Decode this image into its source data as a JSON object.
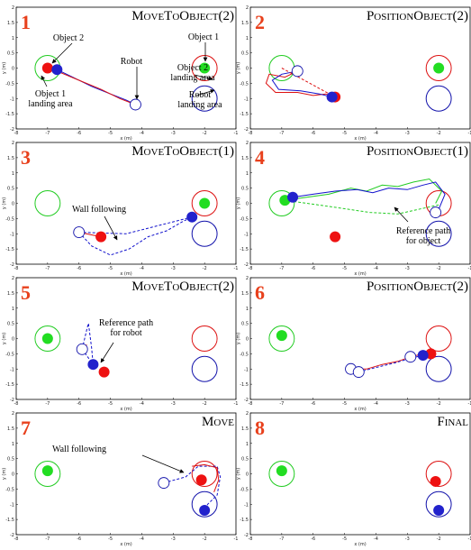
{
  "chart_data": [
    {
      "type": "line",
      "panel": "1",
      "title": "MoveToObject(2)",
      "xlabel": "x (m)",
      "ylabel": "y (m)",
      "xlim": [
        -8,
        -1
      ],
      "ylim": [
        -2,
        2
      ],
      "xticks": [
        -8,
        -7,
        -6,
        -5,
        -4,
        -3,
        -2,
        -1
      ],
      "yticks": [
        -2,
        -1.5,
        -1,
        -0.5,
        0,
        0.5,
        1,
        1.5,
        2
      ],
      "areas": [
        {
          "x": -7,
          "y": 0,
          "r": 0.4,
          "color": "#22cc22"
        },
        {
          "x": -2,
          "y": 0,
          "r": 0.4,
          "color": "#dd1111"
        },
        {
          "x": -2,
          "y": -1,
          "r": 0.4,
          "color": "#1111aa"
        }
      ],
      "dots": [
        {
          "x": -7,
          "y": 0,
          "color": "#ee1111"
        },
        {
          "x": -6.7,
          "y": -0.05,
          "color": "#2222cc"
        },
        {
          "x": -2,
          "y": 0,
          "color": "#22dd22"
        }
      ],
      "robots": [
        {
          "x": -4.2,
          "y": -1.2
        }
      ],
      "paths": [
        {
          "color": "#1111cc",
          "dash": false,
          "x": [
            -6.7,
            -6.2,
            -5.6,
            -5.0,
            -4.5,
            -4.2
          ],
          "y": [
            -0.05,
            -0.3,
            -0.6,
            -0.85,
            -1.05,
            -1.2
          ]
        },
        {
          "color": "#dd1111",
          "dash": false,
          "x": [
            -6.7,
            -6.0,
            -5.3,
            -4.7,
            -4.2
          ],
          "y": [
            -0.1,
            -0.4,
            -0.7,
            -1.0,
            -1.2
          ]
        }
      ],
      "annotations": [
        {
          "lines": [
            "Object 2"
          ]
        },
        {
          "lines": [
            "Object 1"
          ]
        },
        {
          "lines": [
            "Robot"
          ]
        },
        {
          "lines": [
            "Object 2",
            "landing area"
          ]
        },
        {
          "lines": [
            "Object 1",
            "landing area"
          ]
        },
        {
          "lines": [
            "Robot",
            "landing area"
          ]
        }
      ]
    },
    {
      "type": "line",
      "panel": "2",
      "title": "PositionObject(2)",
      "xlabel": "x (m)",
      "ylabel": "y (m)",
      "xlim": [
        -8,
        -1
      ],
      "ylim": [
        -2,
        2
      ],
      "xticks": [
        -8,
        -7,
        -6,
        -5,
        -4,
        -3,
        -2,
        -1
      ],
      "yticks": [
        -2,
        -1.5,
        -1,
        -0.5,
        0,
        0.5,
        1,
        1.5,
        2
      ],
      "areas": [
        {
          "x": -7,
          "y": 0,
          "r": 0.4,
          "color": "#22cc22"
        },
        {
          "x": -2,
          "y": 0,
          "r": 0.4,
          "color": "#dd1111"
        },
        {
          "x": -2,
          "y": -1,
          "r": 0.4,
          "color": "#1111aa"
        }
      ],
      "dots": [
        {
          "x": -5.3,
          "y": -0.95,
          "color": "#ee1111"
        },
        {
          "x": -5.4,
          "y": -0.95,
          "color": "#2222cc"
        },
        {
          "x": -2,
          "y": 0,
          "color": "#22dd22"
        }
      ],
      "robots": [
        {
          "x": -6.5,
          "y": -0.1
        }
      ],
      "paths": [
        {
          "color": "#dd1111",
          "dash": false,
          "x": [
            -6.5,
            -6.9,
            -7.4,
            -7.5,
            -7.2,
            -6.5,
            -6.0,
            -5.6,
            -5.3
          ],
          "y": [
            -0.1,
            -0.3,
            -0.2,
            -0.5,
            -0.8,
            -0.8,
            -0.9,
            -0.85,
            -0.95
          ]
        },
        {
          "color": "#1111cc",
          "dash": false,
          "x": [
            -6.5,
            -7.0,
            -7.3,
            -7.1,
            -6.4,
            -5.8,
            -5.4
          ],
          "y": [
            -0.1,
            -0.2,
            -0.4,
            -0.7,
            -0.75,
            -0.85,
            -0.95
          ]
        },
        {
          "color": "#dd1111",
          "dash": true,
          "x": [
            -7,
            -5.3
          ],
          "y": [
            0,
            -0.95
          ]
        }
      ],
      "annotations": []
    },
    {
      "type": "line",
      "panel": "3",
      "title": "MoveToObject(1)",
      "xlabel": "x (m)",
      "ylabel": "y (m)",
      "xlim": [
        -8,
        -1
      ],
      "ylim": [
        -2,
        2
      ],
      "xticks": [
        -8,
        -7,
        -6,
        -5,
        -4,
        -3,
        -2,
        -1
      ],
      "yticks": [
        -2,
        -1.5,
        -1,
        -0.5,
        0,
        0.5,
        1,
        1.5,
        2
      ],
      "areas": [
        {
          "x": -7,
          "y": 0,
          "r": 0.4,
          "color": "#22cc22"
        },
        {
          "x": -2,
          "y": 0,
          "r": 0.4,
          "color": "#dd1111"
        },
        {
          "x": -2,
          "y": -1,
          "r": 0.4,
          "color": "#1111aa"
        }
      ],
      "dots": [
        {
          "x": -5.3,
          "y": -1.1,
          "color": "#ee1111"
        },
        {
          "x": -2.4,
          "y": -0.45,
          "color": "#2222cc"
        },
        {
          "x": -2,
          "y": 0,
          "color": "#22dd22"
        }
      ],
      "robots": [
        {
          "x": -6,
          "y": -0.95
        }
      ],
      "paths": [
        {
          "color": "#1111cc",
          "dash": true,
          "x": [
            -6,
            -5.6,
            -5.0,
            -4.4,
            -3.8,
            -3.2,
            -2.7,
            -2.4
          ],
          "y": [
            -0.95,
            -1.4,
            -1.7,
            -1.5,
            -1.1,
            -0.9,
            -0.6,
            -0.45
          ]
        },
        {
          "color": "#1111cc",
          "dash": true,
          "x": [
            -6,
            -4.5,
            -2.4
          ],
          "y": [
            -0.95,
            -1.0,
            -0.45
          ]
        },
        {
          "color": "#dd1111",
          "dash": false,
          "x": [
            -6,
            -5.3
          ],
          "y": [
            -0.95,
            -1.1
          ]
        }
      ],
      "annotations": [
        {
          "lines": [
            "Wall following"
          ]
        }
      ]
    },
    {
      "type": "line",
      "panel": "4",
      "title": "PositionObject(1)",
      "xlabel": "x (m)",
      "ylabel": "y (m)",
      "xlim": [
        -8,
        -1
      ],
      "ylim": [
        -2,
        2
      ],
      "xticks": [
        -8,
        -7,
        -6,
        -5,
        -4,
        -3,
        -2,
        -1
      ],
      "yticks": [
        -2,
        -1.5,
        -1,
        -0.5,
        0,
        0.5,
        1,
        1.5,
        2
      ],
      "areas": [
        {
          "x": -7,
          "y": 0,
          "r": 0.4,
          "color": "#22cc22"
        },
        {
          "x": -2,
          "y": 0,
          "r": 0.4,
          "color": "#dd1111"
        },
        {
          "x": -2,
          "y": -1,
          "r": 0.4,
          "color": "#1111aa"
        }
      ],
      "dots": [
        {
          "x": -6.9,
          "y": 0.1,
          "color": "#22dd22"
        },
        {
          "x": -6.65,
          "y": 0.2,
          "color": "#2222cc"
        },
        {
          "x": -5.3,
          "y": -1.1,
          "color": "#ee1111"
        }
      ],
      "robots": [
        {
          "x": -2.1,
          "y": -0.3
        }
      ],
      "paths": [
        {
          "color": "#22cc22",
          "dash": false,
          "x": [
            -6.9,
            -6.2,
            -5.5,
            -4.8,
            -4.3,
            -3.8,
            -3.3,
            -2.8,
            -2.3,
            -1.9,
            -2.1
          ],
          "y": [
            0.1,
            0.2,
            0.3,
            0.5,
            0.4,
            0.6,
            0.55,
            0.7,
            0.8,
            0.4,
            0.0
          ]
        },
        {
          "color": "#1111cc",
          "dash": false,
          "x": [
            -6.65,
            -6.0,
            -5.3,
            -4.6,
            -4.1,
            -3.6,
            -3.0,
            -2.5,
            -2.1,
            -1.8,
            -2.0
          ],
          "y": [
            0.2,
            0.3,
            0.4,
            0.45,
            0.35,
            0.5,
            0.45,
            0.6,
            0.7,
            0.3,
            -0.2
          ]
        },
        {
          "color": "#22cc22",
          "dash": true,
          "x": [
            -6.9,
            -5.5,
            -4.2,
            -3.3,
            -2.0
          ],
          "y": [
            0.1,
            -0.1,
            -0.3,
            -0.35,
            -0.05
          ]
        }
      ],
      "annotations": [
        {
          "lines": [
            "Reference path",
            "for object"
          ]
        }
      ]
    },
    {
      "type": "line",
      "panel": "5",
      "title": "MoveToObject(2)",
      "xlabel": "x (m)",
      "ylabel": "y (m)",
      "xlim": [
        -8,
        -1
      ],
      "ylim": [
        -2,
        2
      ],
      "xticks": [
        -8,
        -7,
        -6,
        -5,
        -4,
        -3,
        -2,
        -1
      ],
      "yticks": [
        -2,
        -1.5,
        -1,
        -0.5,
        0,
        0.5,
        1,
        1.5,
        2
      ],
      "areas": [
        {
          "x": -7,
          "y": 0,
          "r": 0.4,
          "color": "#22cc22"
        },
        {
          "x": -2,
          "y": 0,
          "r": 0.4,
          "color": "#dd1111"
        },
        {
          "x": -2,
          "y": -1,
          "r": 0.4,
          "color": "#1111aa"
        }
      ],
      "dots": [
        {
          "x": -7,
          "y": 0,
          "color": "#22dd22"
        },
        {
          "x": -5.2,
          "y": -1.1,
          "color": "#ee1111"
        },
        {
          "x": -5.55,
          "y": -0.85,
          "color": "#2222cc"
        }
      ],
      "robots": [
        {
          "x": -5.9,
          "y": -0.35
        }
      ],
      "paths": [
        {
          "color": "#1111cc",
          "dash": true,
          "x": [
            -5.9,
            -5.75,
            -5.7,
            -5.6,
            -5.55
          ],
          "y": [
            -0.35,
            0.3,
            0.5,
            -0.3,
            -0.85
          ]
        },
        {
          "color": "#1111cc",
          "dash": true,
          "x": [
            -5.9,
            -5.55
          ],
          "y": [
            -0.35,
            -0.85
          ]
        },
        {
          "color": "#dd1111",
          "dash": false,
          "x": [
            -5.9,
            -5.75
          ],
          "y": [
            -0.35,
            -0.2
          ]
        }
      ],
      "annotations": [
        {
          "lines": [
            "Reference path",
            "for robot"
          ]
        }
      ]
    },
    {
      "type": "line",
      "panel": "6",
      "title": "PositionObject(2)",
      "xlabel": "x (m)",
      "ylabel": "y (m)",
      "xlim": [
        -8,
        -1
      ],
      "ylim": [
        -2,
        2
      ],
      "xticks": [
        -8,
        -7,
        -6,
        -5,
        -4,
        -3,
        -2,
        -1
      ],
      "yticks": [
        -2,
        -1.5,
        -1,
        -0.5,
        0,
        0.5,
        1,
        1.5,
        2
      ],
      "areas": [
        {
          "x": -7,
          "y": 0,
          "r": 0.4,
          "color": "#22cc22"
        },
        {
          "x": -2,
          "y": 0,
          "r": 0.4,
          "color": "#dd1111"
        },
        {
          "x": -2,
          "y": -1,
          "r": 0.4,
          "color": "#1111aa"
        }
      ],
      "dots": [
        {
          "x": -7,
          "y": 0.1,
          "color": "#22dd22"
        },
        {
          "x": -2.25,
          "y": -0.5,
          "color": "#ee1111"
        },
        {
          "x": -2.5,
          "y": -0.55,
          "color": "#2222cc"
        }
      ],
      "robots": [
        {
          "x": -4.8,
          "y": -1.0
        },
        {
          "x": -4.55,
          "y": -1.1
        },
        {
          "x": -2.9,
          "y": -0.6
        }
      ],
      "paths": [
        {
          "color": "#dd1111",
          "dash": false,
          "x": [
            -4.8,
            -4.3,
            -3.8,
            -3.3,
            -2.9,
            -2.5
          ],
          "y": [
            -1.0,
            -1.0,
            -0.85,
            -0.75,
            -0.6,
            -0.5
          ]
        },
        {
          "color": "#1111cc",
          "dash": true,
          "x": [
            -4.55,
            -4.0,
            -3.4,
            -2.9,
            -2.5
          ],
          "y": [
            -1.1,
            -0.95,
            -0.8,
            -0.65,
            -0.55
          ]
        }
      ],
      "annotations": []
    },
    {
      "type": "line",
      "panel": "7",
      "title": "Move",
      "xlabel": "x (m)",
      "ylabel": "y (m)",
      "xlim": [
        -8,
        -1
      ],
      "ylim": [
        -2,
        2
      ],
      "xticks": [
        -8,
        -7,
        -6,
        -5,
        -4,
        -3,
        -2,
        -1
      ],
      "yticks": [
        -2,
        -1.5,
        -1,
        -0.5,
        0,
        0.5,
        1,
        1.5,
        2
      ],
      "areas": [
        {
          "x": -7,
          "y": 0,
          "r": 0.4,
          "color": "#22cc22"
        },
        {
          "x": -2,
          "y": 0,
          "r": 0.4,
          "color": "#dd1111"
        },
        {
          "x": -2,
          "y": -1,
          "r": 0.4,
          "color": "#1111aa"
        }
      ],
      "dots": [
        {
          "x": -7,
          "y": 0.1,
          "color": "#22dd22"
        },
        {
          "x": -2.1,
          "y": -0.2,
          "color": "#ee1111"
        },
        {
          "x": -2.0,
          "y": -1.2,
          "color": "#2222cc"
        }
      ],
      "robots": [
        {
          "x": -3.3,
          "y": -0.3
        }
      ],
      "paths": [
        {
          "color": "#1111cc",
          "dash": true,
          "x": [
            -3.3,
            -2.6,
            -2.2,
            -1.6,
            -1.5,
            -1.6,
            -1.9,
            -2.0
          ],
          "y": [
            -0.3,
            -0.1,
            0.25,
            0.25,
            -0.1,
            -0.7,
            -1.0,
            -1.2
          ]
        },
        {
          "color": "#dd1111",
          "dash": false,
          "x": [
            -2.4,
            -2.0,
            -1.6,
            -1.55,
            -1.7
          ],
          "y": [
            0.25,
            0.3,
            0.2,
            -0.2,
            -0.6
          ]
        }
      ],
      "annotations": [
        {
          "lines": [
            "Wall following"
          ]
        }
      ]
    },
    {
      "type": "line",
      "panel": "8",
      "title": "Final",
      "xlabel": "x (m)",
      "ylabel": "y (m)",
      "xlim": [
        -8,
        -1
      ],
      "ylim": [
        -2,
        2
      ],
      "xticks": [
        -8,
        -7,
        -6,
        -5,
        -4,
        -3,
        -2,
        -1
      ],
      "yticks": [
        -2,
        -1.5,
        -1,
        -0.5,
        0,
        0.5,
        1,
        1.5,
        2
      ],
      "areas": [
        {
          "x": -7,
          "y": 0,
          "r": 0.4,
          "color": "#22cc22"
        },
        {
          "x": -2,
          "y": 0,
          "r": 0.4,
          "color": "#dd1111"
        },
        {
          "x": -2,
          "y": -1,
          "r": 0.4,
          "color": "#1111aa"
        }
      ],
      "dots": [
        {
          "x": -7,
          "y": 0.1,
          "color": "#22dd22"
        },
        {
          "x": -2.1,
          "y": -0.25,
          "color": "#ee1111"
        },
        {
          "x": -2.0,
          "y": -1.2,
          "color": "#2222cc"
        }
      ],
      "robots": [],
      "paths": [],
      "annotations": []
    }
  ]
}
